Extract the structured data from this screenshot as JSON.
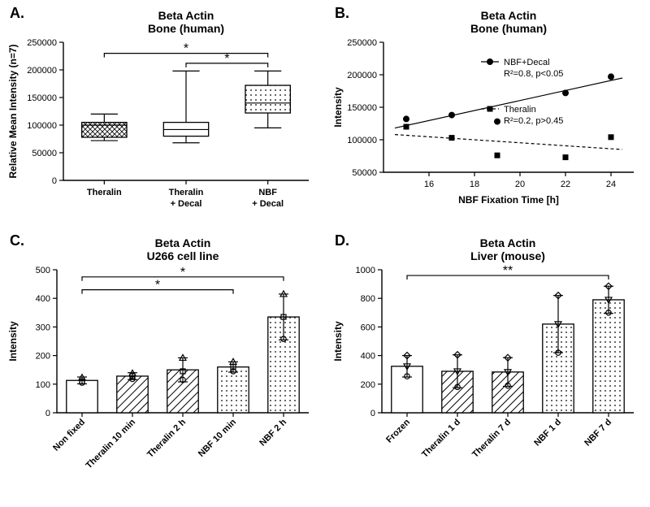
{
  "panelA": {
    "letter": "A.",
    "title1": "Beta Actin",
    "title2": "Bone (human)",
    "ylabel": "Relative Mean Intensity (n=7)",
    "ylim": [
      0,
      250000
    ],
    "yticks": [
      0,
      50000,
      100000,
      150000,
      200000,
      250000
    ],
    "categories": [
      "Theralin",
      "Theralin\n+ Decal",
      "NBF\n+ Decal"
    ],
    "boxes": [
      {
        "min": 72000,
        "q1": 78000,
        "med": 100000,
        "q3": 105000,
        "max": 120000,
        "pattern": "cross"
      },
      {
        "min": 68000,
        "q1": 80000,
        "med": 92000,
        "q3": 105000,
        "max": 198000,
        "pattern": "none"
      },
      {
        "min": 95000,
        "q1": 122000,
        "med": 140000,
        "q3": 172000,
        "max": 198000,
        "pattern": "dots"
      }
    ],
    "sig": [
      {
        "i1": 0,
        "i2": 2,
        "y": 230000,
        "label": "*"
      },
      {
        "i1": 1,
        "i2": 2,
        "y": 212000,
        "label": "*"
      }
    ],
    "colors": {
      "stroke": "#000000",
      "bg": "#ffffff"
    }
  },
  "panelB": {
    "letter": "B.",
    "title1": "Beta Actin",
    "title2": "Bone (human)",
    "ylabel": "Intensity",
    "xlabel": "NBF Fixation Time [h]",
    "ylim": [
      50000,
      250000
    ],
    "yticks": [
      50000,
      100000,
      150000,
      200000,
      250000
    ],
    "xlim": [
      14,
      25
    ],
    "xticks": [
      16,
      18,
      20,
      22,
      24
    ],
    "series": [
      {
        "name": "NBF+Decal",
        "marker": "circle",
        "dash": false,
        "pts": [
          [
            15,
            132000
          ],
          [
            17,
            138000
          ],
          [
            19,
            128000
          ],
          [
            22,
            172000
          ],
          [
            24,
            197000
          ]
        ],
        "fit": [
          [
            14.5,
            118000
          ],
          [
            24.5,
            195000
          ]
        ],
        "r2": "R²=0.8, p<0.05"
      },
      {
        "name": "Theralin",
        "marker": "square",
        "dash": true,
        "pts": [
          [
            15,
            120000
          ],
          [
            17,
            103000
          ],
          [
            19,
            76000
          ],
          [
            22,
            73000
          ],
          [
            24,
            104000
          ]
        ],
        "fit": [
          [
            14.5,
            108000
          ],
          [
            24.5,
            85000
          ]
        ],
        "r2": "R²=0.2, p>0.45"
      }
    ],
    "colors": {
      "stroke": "#000000",
      "bg": "#ffffff"
    }
  },
  "panelC": {
    "letter": "C.",
    "title1": "Beta Actin",
    "title2": "U266 cell line",
    "ylabel": "Intensity",
    "ylim": [
      0,
      500
    ],
    "yticks": [
      0,
      100,
      200,
      300,
      400,
      500
    ],
    "categories": [
      "Non fixed",
      "Theralin 10 min",
      "Theralin 2 h",
      "NBF 10 min",
      "NBF 2 h"
    ],
    "bars": [
      {
        "mean": 113,
        "sd": 12,
        "pattern": "none",
        "pts": [
          105,
          110,
          123
        ]
      },
      {
        "mean": 128,
        "sd": 12,
        "pattern": "hatch",
        "pts": [
          118,
          128,
          138
        ]
      },
      {
        "mean": 150,
        "sd": 42,
        "pattern": "hatch",
        "pts": [
          115,
          145,
          192
        ]
      },
      {
        "mean": 160,
        "sd": 18,
        "pattern": "dots",
        "pts": [
          145,
          160,
          178
        ]
      },
      {
        "mean": 335,
        "sd": 80,
        "pattern": "dots",
        "pts": [
          258,
          335,
          415
        ]
      }
    ],
    "sig": [
      {
        "i1": 0,
        "i2": 3,
        "y": 430,
        "label": "*"
      },
      {
        "i1": 0,
        "i2": 4,
        "y": 475,
        "label": "*"
      }
    ],
    "colors": {
      "stroke": "#000000",
      "bg": "#ffffff"
    }
  },
  "panelD": {
    "letter": "D.",
    "title1": "Beta Actin",
    "title2": "Liver (mouse)",
    "ylabel": "Intensity",
    "ylim": [
      0,
      1000
    ],
    "yticks": [
      0,
      200,
      400,
      600,
      800,
      1000
    ],
    "categories": [
      "Frozen",
      "Theralin 1 d",
      "Theralin 7 d",
      "NBF 1 d",
      "NBF 7 d"
    ],
    "bars": [
      {
        "mean": 325,
        "sd": 75,
        "pattern": "none",
        "pts": [
          255,
          325,
          400
        ]
      },
      {
        "mean": 290,
        "sd": 115,
        "pattern": "hatch",
        "pts": [
          180,
          290,
          405
        ]
      },
      {
        "mean": 285,
        "sd": 100,
        "pattern": "hatch",
        "pts": [
          190,
          285,
          385
        ]
      },
      {
        "mean": 620,
        "sd": 200,
        "pattern": "dots",
        "pts": [
          420,
          620,
          820
        ]
      },
      {
        "mean": 790,
        "sd": 95,
        "pattern": "dots",
        "pts": [
          700,
          790,
          885
        ]
      }
    ],
    "sig": [
      {
        "i1": 0,
        "i2": 4,
        "y": 960,
        "label": "**"
      }
    ],
    "colors": {
      "stroke": "#000000",
      "bg": "#ffffff"
    }
  },
  "fonts": {
    "title": 14,
    "axis": 12,
    "tick": 11,
    "letter": 18,
    "sig": 16
  }
}
